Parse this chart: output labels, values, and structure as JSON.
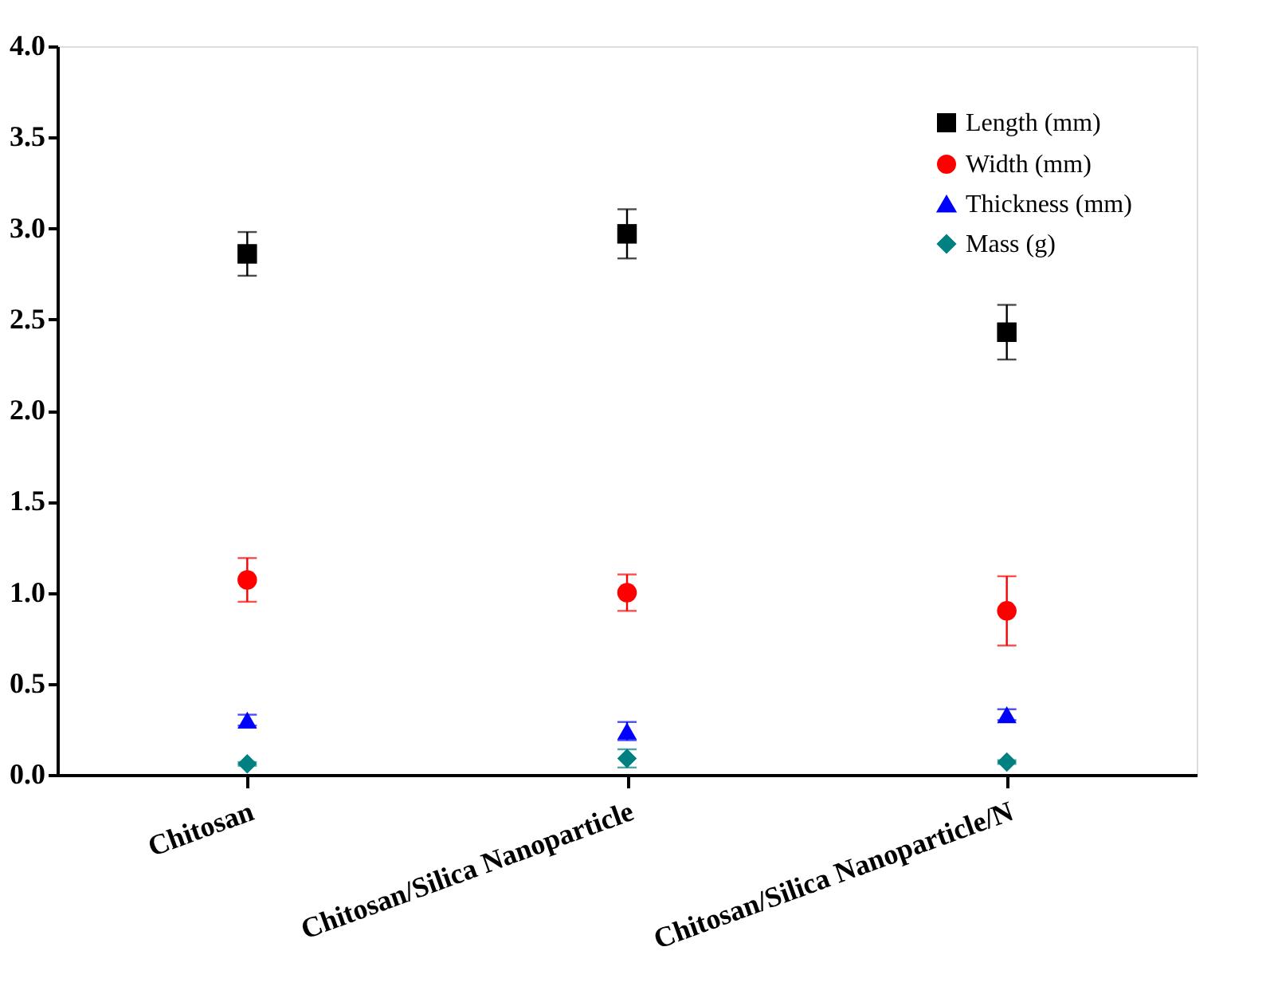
{
  "chart_data": {
    "type": "scatter",
    "categories": [
      "Chitosan",
      "Chitosan/Silica Nanoparticle",
      "Chitosan/Silica Nanoparticle/N"
    ],
    "series": [
      {
        "name": "Length (mm)",
        "color": "#000000",
        "marker": "square",
        "values": [
          2.86,
          2.97,
          2.43
        ],
        "errors": [
          0.12,
          0.135,
          0.15
        ]
      },
      {
        "name": "Width (mm)",
        "color": "#ff0000",
        "marker": "circle",
        "values": [
          1.07,
          1.0,
          0.9
        ],
        "errors": [
          0.12,
          0.1,
          0.19
        ]
      },
      {
        "name": "Thickness (mm)",
        "color": "#0000ff",
        "marker": "triangle",
        "values": [
          0.3,
          0.24,
          0.33
        ],
        "errors": [
          0.03,
          0.05,
          0.03
        ]
      },
      {
        "name": "Mass (g)",
        "color": "#008080",
        "marker": "diamond",
        "values": [
          0.06,
          0.09,
          0.07
        ],
        "errors": [
          0.01,
          0.05,
          0.01
        ]
      }
    ],
    "ylim": [
      0,
      4.0
    ],
    "yticks": [
      {
        "value": 0,
        "label": "0.0"
      },
      0.5,
      {
        "value": 1,
        "label": "1.0"
      },
      1.5,
      {
        "value": 2,
        "label": "2.0"
      },
      2.5,
      {
        "value": 3,
        "label": "3.0"
      },
      3.5,
      {
        "value": 4,
        "label": "4.0"
      }
    ],
    "grid": false,
    "legend": "top right"
  }
}
